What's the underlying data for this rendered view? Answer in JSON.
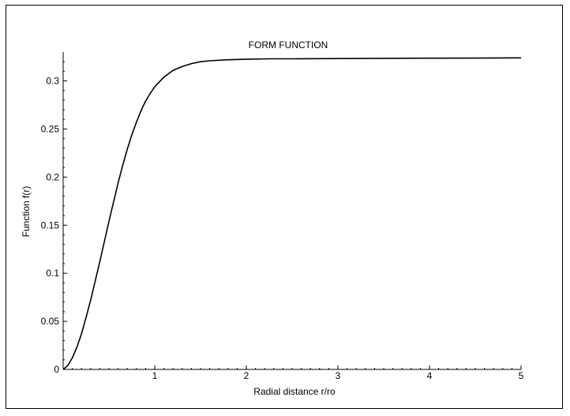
{
  "chart_data": {
    "type": "line",
    "title": "FORM FUNCTION",
    "xlabel": "Radial distance r/ro",
    "ylabel": "Function f(r)",
    "xlim": [
      0,
      5
    ],
    "ylim": [
      0,
      0.33
    ],
    "x_ticks": [
      0,
      1,
      2,
      3,
      4,
      5
    ],
    "x_tick_labels": [
      "",
      "1",
      "2",
      "3",
      "4",
      "5"
    ],
    "y_ticks": [
      0,
      0.05,
      0.1,
      0.15,
      0.2,
      0.25,
      0.3
    ],
    "y_tick_labels": [
      "0",
      "0.05",
      "0.1",
      "0.15",
      "0.2",
      "0.25",
      "0.3"
    ],
    "grid": false,
    "legend": "none",
    "line_color": "#000000",
    "series": [
      {
        "x": [
          0,
          0.05,
          0.1,
          0.15,
          0.2,
          0.25,
          0.3,
          0.35,
          0.4,
          0.45,
          0.5,
          0.55,
          0.6,
          0.65,
          0.7,
          0.75,
          0.8,
          0.85,
          0.9,
          0.95,
          1.0,
          1.1,
          1.2,
          1.3,
          1.4,
          1.5,
          1.6,
          1.8,
          2.0,
          2.25,
          2.5,
          3.0,
          3.5,
          4.0,
          4.5,
          5.0
        ],
        "y": [
          0,
          0.004,
          0.012,
          0.023,
          0.037,
          0.054,
          0.072,
          0.092,
          0.112,
          0.133,
          0.154,
          0.174,
          0.194,
          0.212,
          0.229,
          0.244,
          0.257,
          0.269,
          0.279,
          0.287,
          0.294,
          0.304,
          0.311,
          0.315,
          0.318,
          0.32,
          0.321,
          0.322,
          0.3225,
          0.323,
          0.323,
          0.3233,
          0.3235,
          0.3237,
          0.3238,
          0.324
        ]
      }
    ]
  }
}
